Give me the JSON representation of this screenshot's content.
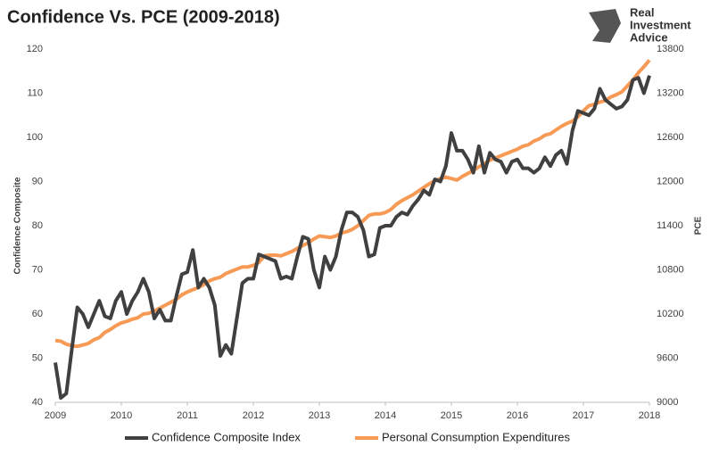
{
  "chart_data": {
    "type": "line",
    "title": "Confidence Vs. PCE (2009-2018)",
    "logo": [
      "Real",
      "Investment",
      "Advice"
    ],
    "y_label": "Confidence Composite",
    "y2_label": "PCE",
    "categories": [
      "2009",
      null,
      null,
      null,
      null,
      null,
      null,
      null,
      null,
      null,
      null,
      null,
      "2010",
      null,
      null,
      null,
      null,
      null,
      null,
      null,
      null,
      null,
      null,
      null,
      "2011",
      null,
      null,
      null,
      null,
      null,
      null,
      null,
      null,
      null,
      null,
      null,
      "2012",
      null,
      null,
      null,
      null,
      null,
      null,
      null,
      null,
      null,
      null,
      null,
      "2013",
      null,
      null,
      null,
      null,
      null,
      null,
      null,
      null,
      null,
      null,
      null,
      "2014",
      null,
      null,
      null,
      null,
      null,
      null,
      null,
      null,
      null,
      null,
      null,
      "2015",
      null,
      null,
      null,
      null,
      null,
      null,
      null,
      null,
      null,
      null,
      null,
      "2016",
      null,
      null,
      null,
      null,
      null,
      null,
      null,
      null,
      null,
      null,
      null,
      "2017",
      null,
      null,
      null,
      null,
      null,
      null,
      null,
      null,
      null,
      null,
      null,
      "2018"
    ],
    "series": [
      {
        "name": "Confidence Composite Index",
        "color": "#404040",
        "axis": "y",
        "values": [
          49,
          41,
          42,
          52,
          61.5,
          60,
          57,
          60,
          63,
          59.5,
          59,
          63,
          65,
          60,
          63,
          65,
          68,
          65,
          59,
          61,
          58.5,
          58.5,
          64,
          69,
          69.5,
          74.5,
          66,
          68,
          66,
          62,
          50.5,
          53,
          51,
          59,
          67,
          68,
          68,
          73.5,
          73,
          72.5,
          72,
          68,
          68.5,
          68,
          73,
          77.5,
          77,
          70,
          66,
          73,
          70,
          73,
          79,
          83,
          83,
          82,
          79,
          73,
          73.5,
          79.5,
          80,
          80,
          82,
          83,
          82.5,
          84.5,
          86,
          88,
          87,
          90.5,
          90,
          93.5,
          101,
          97,
          97,
          95,
          92,
          98,
          92,
          96.5,
          95,
          94.5,
          92,
          94.5,
          95,
          93,
          93,
          92,
          93,
          95.5,
          93.5,
          96,
          97,
          94,
          101.5,
          106,
          105.5,
          105,
          106.5,
          111,
          108.5,
          107.5,
          106.5,
          107,
          108.5,
          113,
          113.5,
          110,
          114
        ]
      },
      {
        "name": "Personal Consumption Expenditures",
        "color": "#f79a55",
        "axis": "y2",
        "values": [
          9840,
          9830,
          9790,
          9770,
          9760,
          9780,
          9800,
          9850,
          9880,
          9950,
          9990,
          10040,
          10080,
          10100,
          10130,
          10150,
          10200,
          10210,
          10240,
          10280,
          10320,
          10360,
          10400,
          10460,
          10500,
          10530,
          10560,
          10600,
          10650,
          10680,
          10700,
          10750,
          10780,
          10810,
          10840,
          10840,
          10860,
          10900,
          10990,
          11000,
          11000,
          10990,
          11020,
          11050,
          11090,
          11130,
          11170,
          11220,
          11260,
          11250,
          11240,
          11260,
          11300,
          11320,
          11350,
          11400,
          11470,
          11540,
          11560,
          11560,
          11580,
          11620,
          11690,
          11740,
          11780,
          11820,
          11870,
          11920,
          11970,
          12010,
          12040,
          12060,
          12040,
          12020,
          12070,
          12110,
          12150,
          12200,
          12240,
          12290,
          12320,
          12350,
          12380,
          12410,
          12440,
          12480,
          12500,
          12550,
          12580,
          12630,
          12650,
          12700,
          12750,
          12790,
          12820,
          12880,
          12960,
          13030,
          13050,
          13080,
          13100,
          13150,
          13180,
          13220,
          13300,
          13380,
          13480,
          13560,
          13650
        ]
      }
    ],
    "ylim": [
      40,
      120
    ],
    "yticks": [
      40,
      50,
      60,
      70,
      80,
      90,
      100,
      110,
      120
    ],
    "y2lim": [
      9000,
      13800
    ],
    "y2ticks": [
      9000,
      9600,
      10200,
      10800,
      11400,
      12000,
      12600,
      13200,
      13800
    ],
    "grid": false
  }
}
